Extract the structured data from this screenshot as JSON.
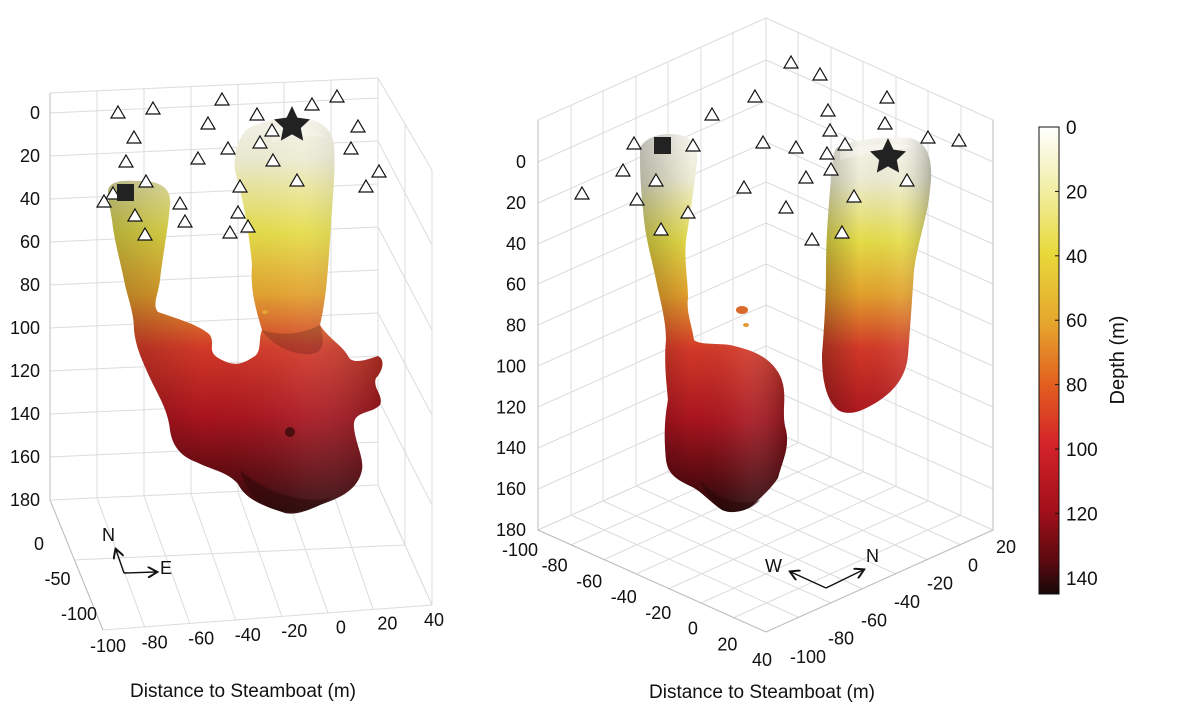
{
  "chart_data": [
    {
      "type": "3d-isosurface",
      "view": "oblique, looking north",
      "xlabel": "Distance to Steamboat (m)",
      "x_ticks": [
        "-100",
        "-80",
        "-60",
        "-40",
        "-20",
        "0",
        "20",
        "40"
      ],
      "y_ticks": [
        "0",
        "-50",
        "-100"
      ],
      "z_ticks": [
        "0",
        "20",
        "40",
        "60",
        "80",
        "100",
        "120",
        "140",
        "160",
        "180"
      ],
      "xlim": [
        -100,
        40
      ],
      "ylim": [
        -100,
        0
      ],
      "zlim": [
        0,
        180
      ],
      "z_reversed": true,
      "grid": true,
      "compass": {
        "north": "N",
        "east": "E"
      },
      "markers": {
        "triangles": "surface stations",
        "square": "conduit A top",
        "star": "Steamboat vent"
      }
    },
    {
      "type": "3d-isosurface",
      "view": "isometric",
      "xlabel": "Distance to Steamboat (m)",
      "x_ticks": [
        "-100",
        "-80",
        "-60",
        "-40",
        "-20",
        "0",
        "20",
        "40"
      ],
      "y_ticks": [
        "-100",
        "-80",
        "-60",
        "-40",
        "-20",
        "0",
        "20"
      ],
      "z_ticks": [
        "0",
        "20",
        "40",
        "60",
        "80",
        "100",
        "120",
        "140",
        "160",
        "180"
      ],
      "xlim": [
        -100,
        40
      ],
      "ylim": [
        -100,
        20
      ],
      "zlim": [
        0,
        180
      ],
      "z_reversed": true,
      "grid": true,
      "compass": {
        "west": "W",
        "north": "N"
      }
    }
  ],
  "colorbar": {
    "label": "Depth (m)",
    "ticks": [
      "0",
      "20",
      "40",
      "60",
      "80",
      "100",
      "120",
      "140"
    ],
    "range": [
      0,
      145
    ],
    "colors": [
      "#ffffff",
      "#f1ee9f",
      "#e8d93a",
      "#e5a62d",
      "#e3601f",
      "#d42329",
      "#a3101a",
      "#5c0a10",
      "#1a0a0a"
    ]
  },
  "colors": {
    "surface_top": "#f4f2e8",
    "surface_mid": "#e3d835",
    "surface_low": "#c8222a",
    "surface_bottom": "#3a0b0e",
    "grid": "#dcdcdc"
  }
}
